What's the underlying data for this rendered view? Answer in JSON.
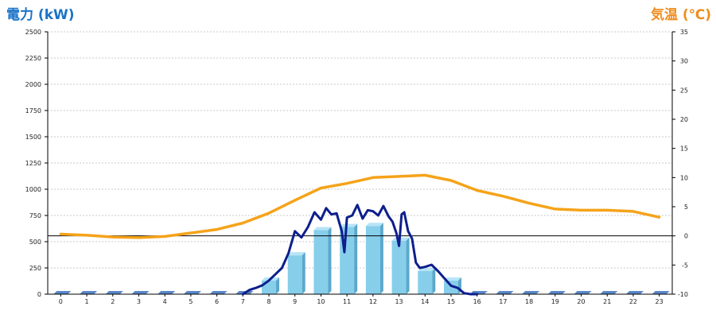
{
  "chart_data": {
    "type": "bar",
    "left_axis_label": "電力 (kW)",
    "right_axis_label": "気温 (℃)",
    "left_axis_color": "#1a73c8",
    "right_axis_color": "#f08c1c",
    "categories": [
      "0",
      "1",
      "2",
      "3",
      "4",
      "5",
      "6",
      "7",
      "8",
      "9",
      "10",
      "11",
      "12",
      "13",
      "14",
      "15",
      "16",
      "17",
      "18",
      "19",
      "20",
      "21",
      "22",
      "23"
    ],
    "ylim_left": [
      0,
      2500
    ],
    "ylim_right": [
      -10,
      35
    ],
    "left_ticks": [
      0,
      250,
      500,
      750,
      1000,
      1250,
      1500,
      1750,
      2000,
      2250,
      2500
    ],
    "right_ticks": [
      -10,
      -5,
      0,
      5,
      10,
      15,
      20,
      25,
      30,
      35
    ],
    "grid": "horizontal dashed",
    "series": [
      {
        "type": "bar",
        "axis": "left",
        "color": "#87ceeb",
        "shade_color": "#5aa8cc",
        "empty_color": "#5a87c8",
        "values": [
          0,
          0,
          0,
          0,
          0,
          0,
          0,
          0,
          130,
          370,
          610,
          640,
          650,
          510,
          220,
          130,
          0,
          0,
          0,
          0,
          0,
          0,
          0,
          0
        ]
      },
      {
        "type": "line",
        "axis": "left",
        "color": "#0d1f8c",
        "x": [
          7,
          7.25,
          7.5,
          7.75,
          8,
          8.25,
          8.5,
          8.75,
          9,
          9.25,
          9.5,
          9.75,
          10,
          10.2,
          10.4,
          10.6,
          10.8,
          10.9,
          11,
          11.2,
          11.4,
          11.6,
          11.8,
          12,
          12.2,
          12.4,
          12.6,
          12.75,
          12.9,
          13,
          13.1,
          13.2,
          13.35,
          13.5,
          13.65,
          13.8,
          14,
          14.25,
          14.5,
          14.75,
          15,
          15.25,
          15.5,
          15.75,
          16
        ],
        "y": [
          0,
          40,
          60,
          85,
          130,
          190,
          250,
          390,
          600,
          540,
          640,
          780,
          710,
          820,
          760,
          770,
          600,
          400,
          730,
          750,
          850,
          720,
          800,
          790,
          750,
          840,
          740,
          690,
          580,
          460,
          760,
          780,
          600,
          530,
          300,
          250,
          260,
          280,
          220,
          150,
          80,
          60,
          10,
          0,
          0
        ]
      },
      {
        "type": "line",
        "axis": "right",
        "color": "#f5a31a",
        "x": [
          0,
          1,
          2,
          3,
          4,
          5,
          6,
          7,
          8,
          9,
          10,
          11,
          12,
          13,
          14,
          15,
          16,
          17,
          18,
          19,
          20,
          21,
          22,
          23
        ],
        "y": [
          0.3,
          0.1,
          -0.2,
          -0.3,
          -0.1,
          0.5,
          1.1,
          2.2,
          3.9,
          6.1,
          8.2,
          9.0,
          10.0,
          10.2,
          10.4,
          9.5,
          7.8,
          6.8,
          5.6,
          4.6,
          4.4,
          4.4,
          4.2,
          3.2
        ]
      }
    ]
  }
}
